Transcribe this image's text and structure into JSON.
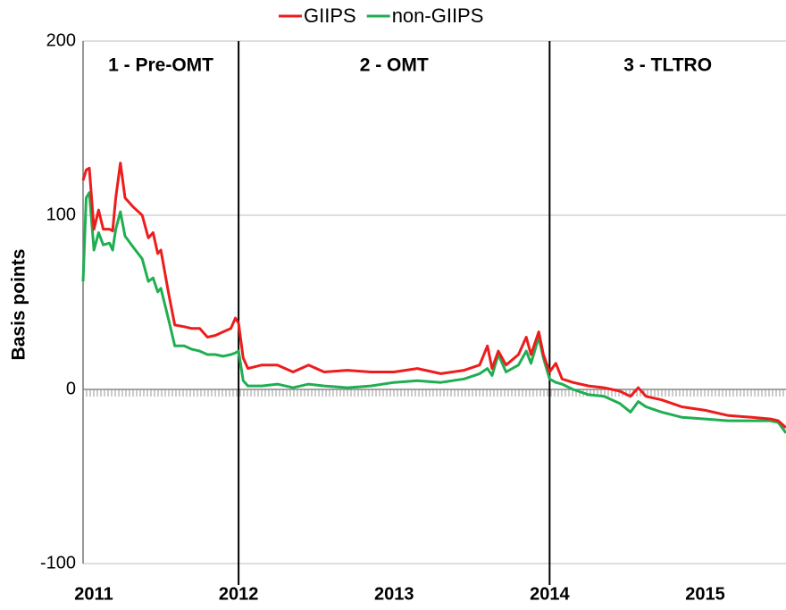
{
  "chart_data": {
    "type": "line",
    "y_label": "Basis points",
    "annotations": [
      "1 - Pre-OMT",
      "2 - OMT",
      "3 - TLTRO"
    ],
    "dividers": [
      2012,
      2014
    ],
    "xlim": [
      2011,
      2015.52
    ],
    "xticks": [
      2011,
      2012,
      2013,
      2014,
      2015
    ],
    "ylim": [
      -100,
      200
    ],
    "yticks": [
      -100,
      0,
      100,
      200
    ],
    "grid": true,
    "legend": "top",
    "x": [
      2011.0,
      2011.02,
      2011.04,
      2011.07,
      2011.1,
      2011.13,
      2011.17,
      2011.19,
      2011.21,
      2011.24,
      2011.27,
      2011.32,
      2011.38,
      2011.42,
      2011.45,
      2011.48,
      2011.5,
      2011.55,
      2011.59,
      2011.65,
      2011.7,
      2011.75,
      2011.8,
      2011.85,
      2011.9,
      2011.95,
      2011.98,
      2012.0,
      2012.03,
      2012.06,
      2012.15,
      2012.25,
      2012.35,
      2012.45,
      2012.55,
      2012.7,
      2012.85,
      2013.0,
      2013.15,
      2013.3,
      2013.45,
      2013.55,
      2013.6,
      2013.63,
      2013.67,
      2013.72,
      2013.8,
      2013.85,
      2013.88,
      2013.93,
      2013.96,
      2014.0,
      2014.04,
      2014.08,
      2014.15,
      2014.25,
      2014.35,
      2014.45,
      2014.52,
      2014.57,
      2014.62,
      2014.72,
      2014.85,
      2015.0,
      2015.15,
      2015.3,
      2015.42,
      2015.47,
      2015.52
    ],
    "series": [
      {
        "name": "GIIPS",
        "color": "#ee1c1c",
        "values": [
          120,
          126,
          127,
          92,
          103,
          92,
          92,
          91,
          110,
          130,
          110,
          105,
          100,
          87,
          90,
          78,
          80,
          55,
          37,
          36,
          35,
          35,
          30,
          31,
          33,
          35,
          41,
          38,
          18,
          12,
          14,
          14,
          10,
          14,
          10,
          11,
          10,
          10,
          12,
          9,
          11,
          14,
          25,
          12,
          22,
          14,
          20,
          30,
          20,
          33,
          20,
          10,
          15,
          6,
          4,
          2,
          1,
          -1,
          -4,
          1,
          -4,
          -6,
          -10,
          -12,
          -15,
          -16,
          -17,
          -18,
          -22
        ]
      },
      {
        "name": "non-GIIPS",
        "color": "#1fae52",
        "values": [
          62,
          110,
          113,
          80,
          90,
          83,
          84,
          80,
          92,
          102,
          88,
          82,
          75,
          62,
          64,
          56,
          58,
          40,
          25,
          25,
          23,
          22,
          20,
          20,
          19,
          20,
          21,
          22,
          5,
          2,
          2,
          3,
          1,
          3,
          2,
          1,
          2,
          4,
          5,
          4,
          6,
          9,
          12,
          8,
          20,
          10,
          14,
          22,
          15,
          30,
          18,
          6,
          4,
          3,
          0,
          -3,
          -4,
          -8,
          -13,
          -7,
          -10,
          -13,
          -16,
          -17,
          -18,
          -18,
          -18,
          -19,
          -25
        ]
      }
    ]
  }
}
